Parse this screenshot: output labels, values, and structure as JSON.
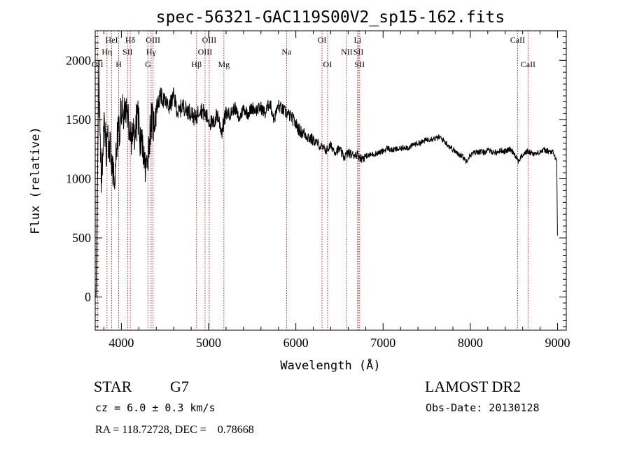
{
  "chart_data": {
    "type": "line",
    "title": "spec-56321-GAC119S00V2_sp15-162.fits",
    "xlabel": "Wavelength (Å)",
    "ylabel": "Flux (relative)",
    "xlim": [
      3700,
      9100
    ],
    "ylim": [
      -280,
      2250
    ],
    "x_ticks": [
      4000,
      5000,
      6000,
      7000,
      8000,
      9000
    ],
    "y_ticks": [
      0,
      500,
      1000,
      1500,
      2000
    ],
    "x_tick_labels": [
      "4000",
      "5000",
      "6000",
      "7000",
      "8000",
      "9000"
    ],
    "y_tick_labels": [
      "0",
      "500",
      "1000",
      "1500",
      "2000"
    ],
    "series": [
      {
        "name": "spectrum",
        "x": [
          3710,
          3740,
          3770,
          3800,
          3830,
          3860,
          3890,
          3920,
          3950,
          3980,
          4010,
          4040,
          4070,
          4100,
          4130,
          4160,
          4190,
          4220,
          4250,
          4280,
          4310,
          4340,
          4370,
          4400,
          4450,
          4500,
          4550,
          4600,
          4650,
          4700,
          4750,
          4800,
          4850,
          4900,
          4950,
          5000,
          5050,
          5100,
          5150,
          5200,
          5250,
          5300,
          5350,
          5400,
          5450,
          5500,
          5550,
          5600,
          5650,
          5700,
          5750,
          5800,
          5850,
          5900,
          5950,
          6000,
          6050,
          6100,
          6150,
          6200,
          6250,
          6300,
          6350,
          6400,
          6450,
          6500,
          6550,
          6600,
          6650,
          6700,
          6750,
          6800,
          6850,
          6900,
          6950,
          7000,
          7050,
          7100,
          7150,
          7200,
          7250,
          7300,
          7350,
          7400,
          7450,
          7500,
          7550,
          7600,
          7650,
          7700,
          7750,
          7800,
          7850,
          7900,
          7950,
          8000,
          8050,
          8100,
          8150,
          8200,
          8250,
          8300,
          8350,
          8400,
          8450,
          8500,
          8550,
          8600,
          8650,
          8700,
          8750,
          8800,
          8850,
          8900,
          8950,
          8990,
          9000
        ],
        "y": [
          0,
          1900,
          1000,
          1450,
          1250,
          1350,
          1100,
          1000,
          1300,
          1450,
          1650,
          1500,
          1550,
          1400,
          1300,
          1450,
          1500,
          1300,
          1250,
          1050,
          1250,
          1500,
          1450,
          1600,
          1700,
          1650,
          1600,
          1700,
          1550,
          1620,
          1580,
          1560,
          1500,
          1600,
          1550,
          1500,
          1450,
          1550,
          1400,
          1550,
          1550,
          1600,
          1500,
          1600,
          1550,
          1600,
          1580,
          1600,
          1550,
          1650,
          1500,
          1620,
          1580,
          1550,
          1520,
          1460,
          1400,
          1380,
          1350,
          1320,
          1300,
          1260,
          1240,
          1280,
          1230,
          1250,
          1180,
          1220,
          1200,
          1210,
          1170,
          1190,
          1200,
          1210,
          1220,
          1230,
          1260,
          1240,
          1250,
          1250,
          1270,
          1260,
          1290,
          1300,
          1310,
          1330,
          1340,
          1340,
          1350,
          1320,
          1280,
          1250,
          1210,
          1200,
          1150,
          1200,
          1220,
          1230,
          1220,
          1240,
          1230,
          1220,
          1240,
          1230,
          1250,
          1220,
          1150,
          1200,
          1230,
          1220,
          1210,
          1230,
          1240,
          1230,
          1220,
          1150,
          450
        ]
      }
    ],
    "line_markers": [
      {
        "name": "OII",
        "wavelength": 3727,
        "row": 3
      },
      {
        "name": "Hη",
        "wavelength": 3835,
        "row": 2
      },
      {
        "name": "HeI",
        "wavelength": 3889,
        "row": 1
      },
      {
        "name": "H",
        "wavelength": 3969,
        "row": 3
      },
      {
        "name": "SII",
        "wavelength": 4072,
        "row": 2
      },
      {
        "name": "Hδ",
        "wavelength": 4102,
        "row": 1
      },
      {
        "name": "G",
        "wavelength": 4305,
        "row": 3
      },
      {
        "name": "Hγ",
        "wavelength": 4341,
        "row": 2
      },
      {
        "name": "OIII",
        "wavelength": 4363,
        "row": 1
      },
      {
        "name": "Hβ",
        "wavelength": 4861,
        "row": 3
      },
      {
        "name": "OIII",
        "wavelength": 4959,
        "row": 2
      },
      {
        "name": "OIII",
        "wavelength": 5007,
        "row": 1
      },
      {
        "name": "Mg",
        "wavelength": 5175,
        "row": 3
      },
      {
        "name": "Na",
        "wavelength": 5894,
        "row": 2
      },
      {
        "name": "OI",
        "wavelength": 6300,
        "row": 1
      },
      {
        "name": "OI",
        "wavelength": 6363,
        "row": 3
      },
      {
        "name": "NII",
        "wavelength": 6583,
        "row": 2
      },
      {
        "name": "Li",
        "wavelength": 6708,
        "row": 1
      },
      {
        "name": "SII",
        "wavelength": 6717,
        "row": 2
      },
      {
        "name": "SII",
        "wavelength": 6731,
        "row": 3
      },
      {
        "name": "CaII",
        "wavelength": 8542,
        "row": 1
      },
      {
        "name": "CaII",
        "wavelength": 8662,
        "row": 3
      }
    ]
  },
  "info": {
    "class_label": "STAR",
    "subclass": "G7",
    "cz_text": "cz = 6.0 ± 0.3 km/s",
    "radec_text": "RA = 118.72728, DEC =    0.78668",
    "survey": "LAMOST DR2",
    "obs_date": "Obs-Date: 20130128"
  }
}
